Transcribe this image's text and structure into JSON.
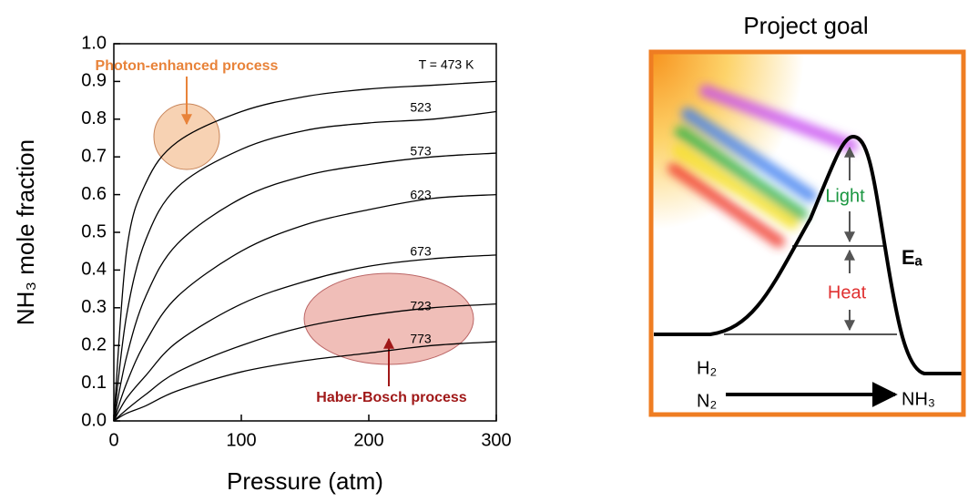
{
  "chart_data": {
    "type": "line",
    "xlabel": "Pressure (atm)",
    "ylabel": "NH₃ mole fraction",
    "x": [
      0,
      10,
      25,
      50,
      100,
      150,
      200,
      250,
      300
    ],
    "series": [
      {
        "name": "T = 473 K",
        "color": "#000000",
        "values": [
          0,
          0.45,
          0.63,
          0.74,
          0.82,
          0.86,
          0.88,
          0.89,
          0.9
        ]
      },
      {
        "name": "523",
        "color": "#000000",
        "values": [
          0,
          0.28,
          0.48,
          0.62,
          0.72,
          0.77,
          0.79,
          0.8,
          0.82
        ]
      },
      {
        "name": "573",
        "color": "#000000",
        "values": [
          0,
          0.17,
          0.33,
          0.47,
          0.59,
          0.65,
          0.68,
          0.7,
          0.71
        ]
      },
      {
        "name": "623",
        "color": "#000000",
        "values": [
          0,
          0.1,
          0.21,
          0.33,
          0.45,
          0.52,
          0.56,
          0.59,
          0.6
        ]
      },
      {
        "name": "673",
        "color": "#000000",
        "values": [
          0,
          0.06,
          0.12,
          0.21,
          0.31,
          0.37,
          0.41,
          0.43,
          0.44
        ]
      },
      {
        "name": "723",
        "color": "#000000",
        "values": [
          0,
          0.03,
          0.07,
          0.13,
          0.2,
          0.25,
          0.28,
          0.3,
          0.31
        ]
      },
      {
        "name": "773",
        "color": "#000000",
        "values": [
          0,
          0.02,
          0.04,
          0.08,
          0.13,
          0.16,
          0.18,
          0.2,
          0.21
        ]
      }
    ],
    "xlim": [
      0,
      300
    ],
    "xticks": [
      0,
      100,
      200,
      300
    ],
    "ylim": [
      0,
      1
    ],
    "yticks": [
      {
        "value": 0,
        "label": "0.0"
      },
      0.1,
      0.2,
      0.3,
      0.4,
      0.5,
      0.6,
      0.7,
      0.8,
      0.9,
      {
        "value": 1,
        "label": "1.0"
      }
    ],
    "annotations": [
      "Photon-enhanced process",
      "Haber-Bosch process"
    ]
  },
  "diagram": {
    "title": "Project goal",
    "light": "Light",
    "heat": "Heat",
    "activation_energy": "Eₐ",
    "reactant_1": "H₂",
    "reactant_2": "N₂",
    "product": "NH₃"
  }
}
